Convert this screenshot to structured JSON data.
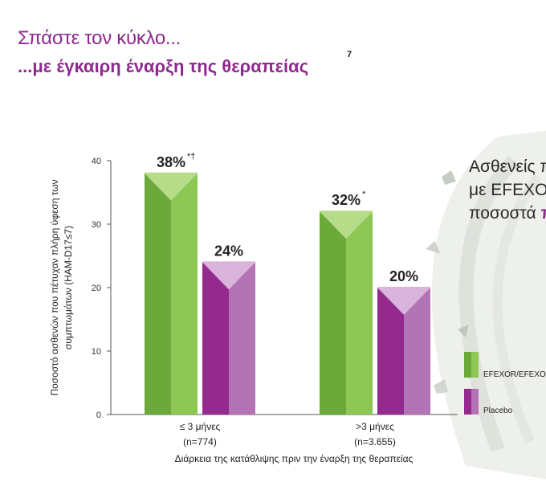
{
  "header": {
    "title_line1": "Σπάστε τον κύκλο...",
    "title_line2": "...με έγκαιρη έναρξη της θεραπείας",
    "title_ref": "7"
  },
  "side_panel": {
    "line1": "Ασθενείς π",
    "line2": "με EFEXOR",
    "line3_prefix": "ποσοστά ",
    "line3_highlight": "π"
  },
  "colors": {
    "efexor_dark": "#6aa93a",
    "efexor_light": "#8dc855",
    "efexor_top": "#b6dc8a",
    "placebo_dark": "#952a8e",
    "placebo_light": "#b274b4",
    "placebo_top": "#d9b3da",
    "title": "#8e2a8e"
  },
  "chart_data": {
    "type": "bar",
    "ylabel": "Ποσοστό ασθενών που πέτυχαν πλήρη ύφεση των συμπτωμάτων (HAM-D17≤7)",
    "ylabel_line1": "Ποσοστό ασθενών που πέτυχαν πλήρη ύφεση των",
    "ylabel_line2": "συμπτωμάτων (HAM-D17≤7)",
    "xlabel": "Διάρκεια της κατάθλιψης πριν την έναρξη της θεραπείας",
    "ylim": [
      0,
      40
    ],
    "yticks": [
      0,
      10,
      20,
      30,
      40
    ],
    "categories": [
      {
        "label": "≤ 3 μήνες",
        "n": "(n=774)"
      },
      {
        "label": ">3 μήνες",
        "n": "(n=3.655)"
      }
    ],
    "series": [
      {
        "name": "EFEXOR/EFEXOR",
        "values": [
          38,
          32
        ],
        "labels": [
          "38%",
          "32%"
        ],
        "notes": [
          "*†",
          "*"
        ]
      },
      {
        "name": "Placebo",
        "values": [
          24,
          20
        ],
        "labels": [
          "24%",
          "20%"
        ],
        "notes": [
          "",
          ""
        ]
      }
    ],
    "legend": "right"
  }
}
